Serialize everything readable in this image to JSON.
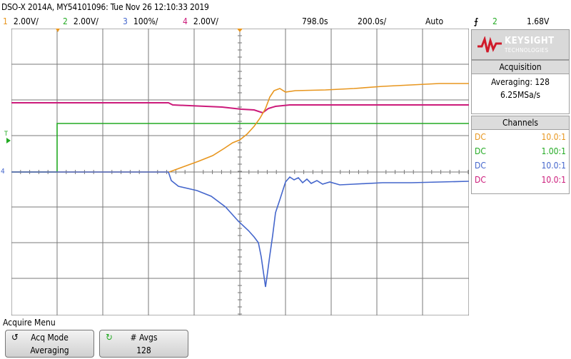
{
  "header": {
    "title": "DSO-X 2014A, MY54101096: Tue Nov 26 12:10:33 2019",
    "channels": [
      {
        "num": "1",
        "scale": "2.00V/",
        "color": "#e8961e"
      },
      {
        "num": "2",
        "scale": "2.00V/",
        "color": "#22aa22"
      },
      {
        "num": "3",
        "scale": "100%/",
        "color": "#4466cc"
      },
      {
        "num": "4",
        "scale": "2.00V/",
        "color": "#cc1a7a"
      }
    ],
    "time_delay": "798.0s",
    "time_scale": "200.0s/",
    "trigger_mode": "Auto",
    "trigger_source": "2",
    "trigger_level": "1.68V"
  },
  "logo": {
    "name": "KEYSIGHT",
    "sub": "TECHNOLOGIES"
  },
  "acquisition": {
    "title": "Acquisition",
    "mode": "Averaging: 128",
    "rate": "6.25MSa/s"
  },
  "channels_panel": {
    "title": "Channels",
    "rows": [
      {
        "coupling": "DC",
        "probe": "10.0:1",
        "color": "#e8961e"
      },
      {
        "coupling": "DC",
        "probe": "1.00:1",
        "color": "#22aa22"
      },
      {
        "coupling": "DC",
        "probe": "10.0:1",
        "color": "#4466cc"
      },
      {
        "coupling": "DC",
        "probe": "10.0:1",
        "color": "#cc1a7a"
      }
    ]
  },
  "menu": {
    "title": "Acquire Menu",
    "softkeys": [
      {
        "label": "Acq Mode",
        "value": "Averaging"
      },
      {
        "label": "# Avgs",
        "value": "128"
      }
    ]
  },
  "markers": {
    "trigger_marker": "T",
    "ground_marker": "4"
  }
}
